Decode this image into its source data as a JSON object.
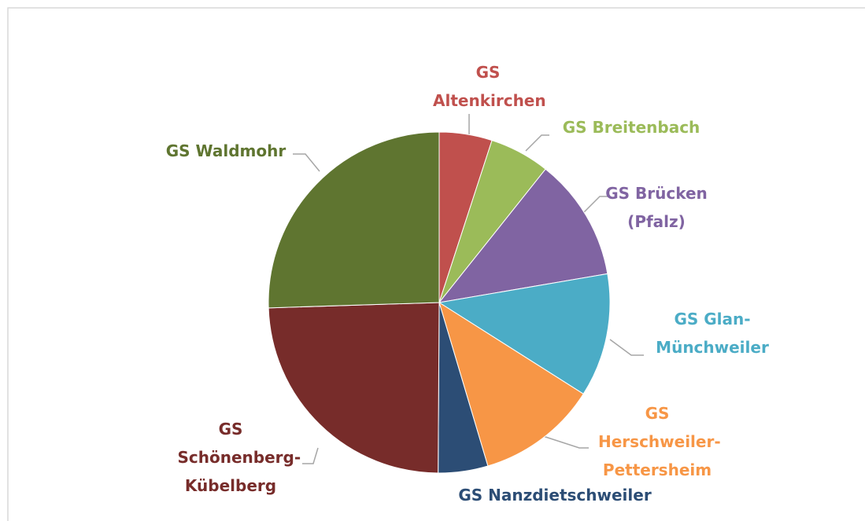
{
  "chart_data": {
    "type": "pie",
    "categories": [
      "GS Altenkirchen",
      "GS Breitenbach",
      "GS Brücken (Pfalz)",
      "GS Glan-Münchweiler",
      "GS Herschweiler-Pettersheim",
      "GS Nanzdietschweiler",
      "GS Schönenberg-Kübelberg",
      "GS Waldmohr"
    ],
    "values": [
      5,
      5.7,
      11.6,
      11.7,
      11.4,
      4.7,
      24.4,
      25.5
    ],
    "colors": [
      "#c0504d",
      "#9bbb59",
      "#8064a2",
      "#4bacc6",
      "#f79646",
      "#2c4d75",
      "#772c2a",
      "#5f7530"
    ]
  }
}
